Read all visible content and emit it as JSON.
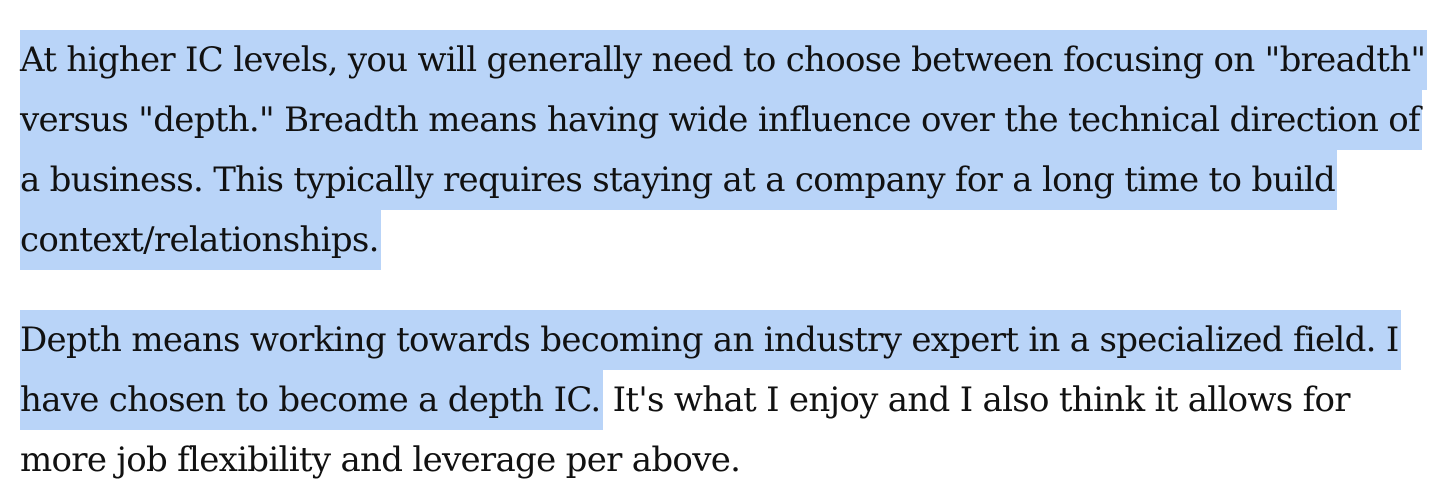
{
  "paragraphs": [
    {
      "lines": [
        {
          "selected": "At higher IC levels, you will generally need to choose between focusing on \"breadth\" ",
          "rest": ""
        },
        {
          "selected": "versus \"depth.\" Breadth means having wide influence over the technical direction of ",
          "rest": ""
        },
        {
          "selected": "a business. This typically requires staying at a company for a long time to build ",
          "rest": ""
        },
        {
          "selected": "context/relationships. ",
          "rest": ""
        }
      ]
    },
    {
      "lines": [
        {
          "selected": "Depth means working towards becoming an industry expert in a specialized field. I ",
          "rest": ""
        },
        {
          "selected": "have chosen to become a depth IC.",
          "rest": " It's what I enjoy and I also think it allows for"
        },
        {
          "selected": "",
          "rest": "more job flexibility and leverage per above."
        }
      ]
    }
  ],
  "colors": {
    "selection_highlight": "#b9d4f8",
    "text": "#111111",
    "background": "#ffffff"
  }
}
